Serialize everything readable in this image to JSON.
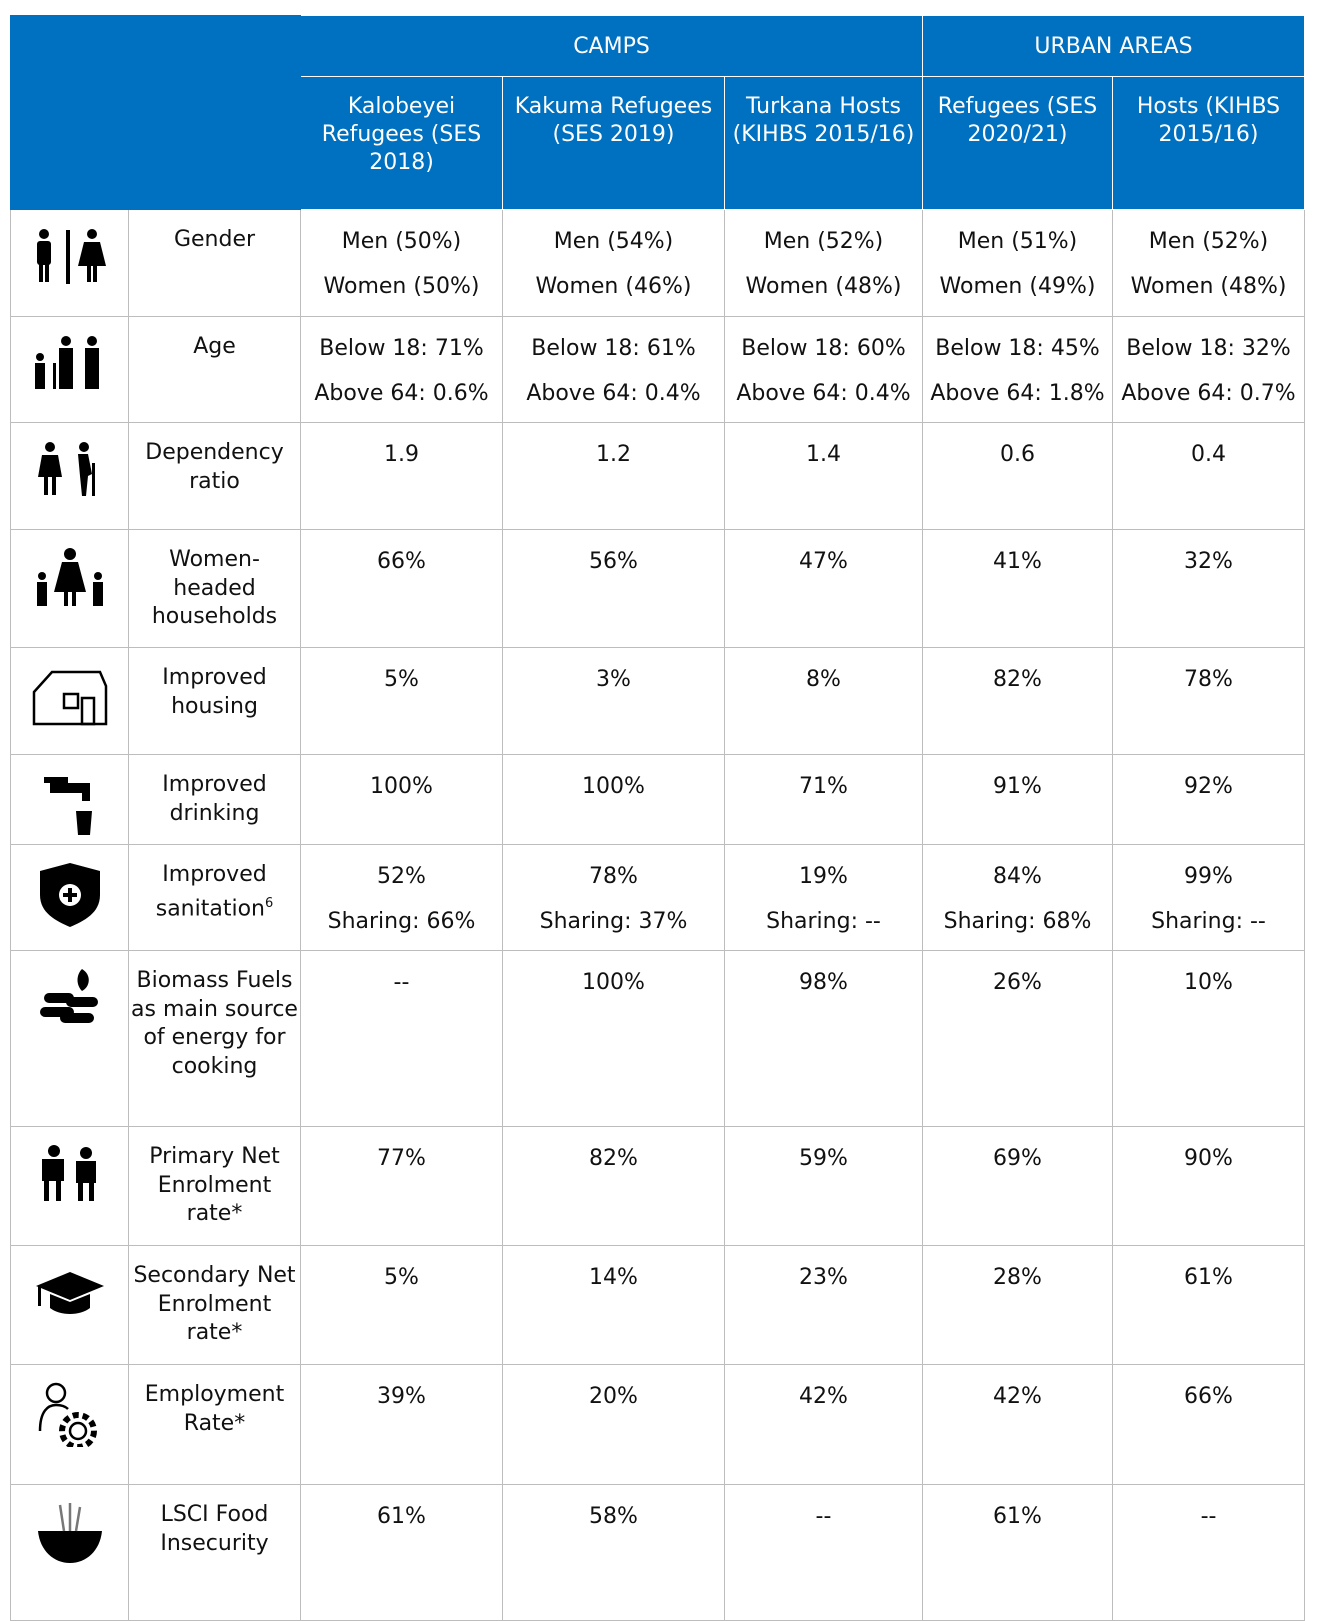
{
  "header": {
    "groups": [
      "CAMPS",
      "URBAN AREAS"
    ],
    "columns": [
      "Kalobeyei Refugees (SES 2018)",
      "Kakuma Refugees (SES 2019)",
      "Turkana Hosts (KIHBS 2015/16)",
      "Refugees (SES 2020/21)",
      "Hosts (KIHBS 2015/16)"
    ]
  },
  "rows": [
    {
      "label": "Gender",
      "cells": [
        [
          "Men (50%)",
          "Women (50%)"
        ],
        [
          "Men (54%)",
          "Women (46%)"
        ],
        [
          "Men (52%)",
          "Women (48%)"
        ],
        [
          "Men (51%)",
          "Women (49%)"
        ],
        [
          "Men (52%)",
          "Women (48%)"
        ]
      ]
    },
    {
      "label": "Age",
      "cells": [
        [
          "Below 18: 71%",
          "Above 64: 0.6%"
        ],
        [
          "Below 18: 61%",
          "Above 64: 0.4%"
        ],
        [
          "Below 18: 60%",
          "Above 64: 0.4%"
        ],
        [
          "Below 18: 45%",
          "Above 64: 1.8%"
        ],
        [
          "Below 18: 32%",
          "Above 64: 0.7%"
        ]
      ]
    },
    {
      "label": "Dependency ratio",
      "cells": [
        [
          "1.9"
        ],
        [
          "1.2"
        ],
        [
          "1.4"
        ],
        [
          "0.6"
        ],
        [
          "0.4"
        ]
      ]
    },
    {
      "label": "Women-headed households",
      "cells": [
        [
          "66%"
        ],
        [
          "56%"
        ],
        [
          "47%"
        ],
        [
          "41%"
        ],
        [
          "32%"
        ]
      ]
    },
    {
      "label": "Improved housing",
      "cells": [
        [
          "5%"
        ],
        [
          "3%"
        ],
        [
          "8%"
        ],
        [
          "82%"
        ],
        [
          "78%"
        ]
      ]
    },
    {
      "label": "Improved drinking",
      "cells": [
        [
          "100%"
        ],
        [
          "100%"
        ],
        [
          "71%"
        ],
        [
          "91%"
        ],
        [
          "92%"
        ]
      ]
    },
    {
      "label": "Improved sanitation",
      "label_note": "6",
      "cells": [
        [
          "52%",
          "Sharing: 66%"
        ],
        [
          "78%",
          "Sharing: 37%"
        ],
        [
          "19%",
          "Sharing: --"
        ],
        [
          "84%",
          "Sharing: 68%"
        ],
        [
          "99%",
          "Sharing: --"
        ]
      ]
    },
    {
      "label": "Biomass Fuels as main source of energy for cooking",
      "cells": [
        [
          "--"
        ],
        [
          "100%"
        ],
        [
          "98%"
        ],
        [
          "26%"
        ],
        [
          "10%"
        ]
      ]
    },
    {
      "label": "Primary Net Enrolment rate*",
      "cells": [
        [
          "77%"
        ],
        [
          "82%"
        ],
        [
          "59%"
        ],
        [
          "69%"
        ],
        [
          "90%"
        ]
      ]
    },
    {
      "label": "Secondary Net Enrolment rate*",
      "cells": [
        [
          "5%"
        ],
        [
          "14%"
        ],
        [
          "23%"
        ],
        [
          "28%"
        ],
        [
          "61%"
        ]
      ]
    },
    {
      "label": "Employment Rate*",
      "cells": [
        [
          "39%"
        ],
        [
          "20%"
        ],
        [
          "42%"
        ],
        [
          "42%"
        ],
        [
          "66%"
        ]
      ]
    },
    {
      "label": "LSCI Food Insecurity",
      "cells": [
        [
          "61%"
        ],
        [
          "58%"
        ],
        [
          "--"
        ],
        [
          "61%"
        ],
        [
          "--"
        ]
      ]
    }
  ]
}
